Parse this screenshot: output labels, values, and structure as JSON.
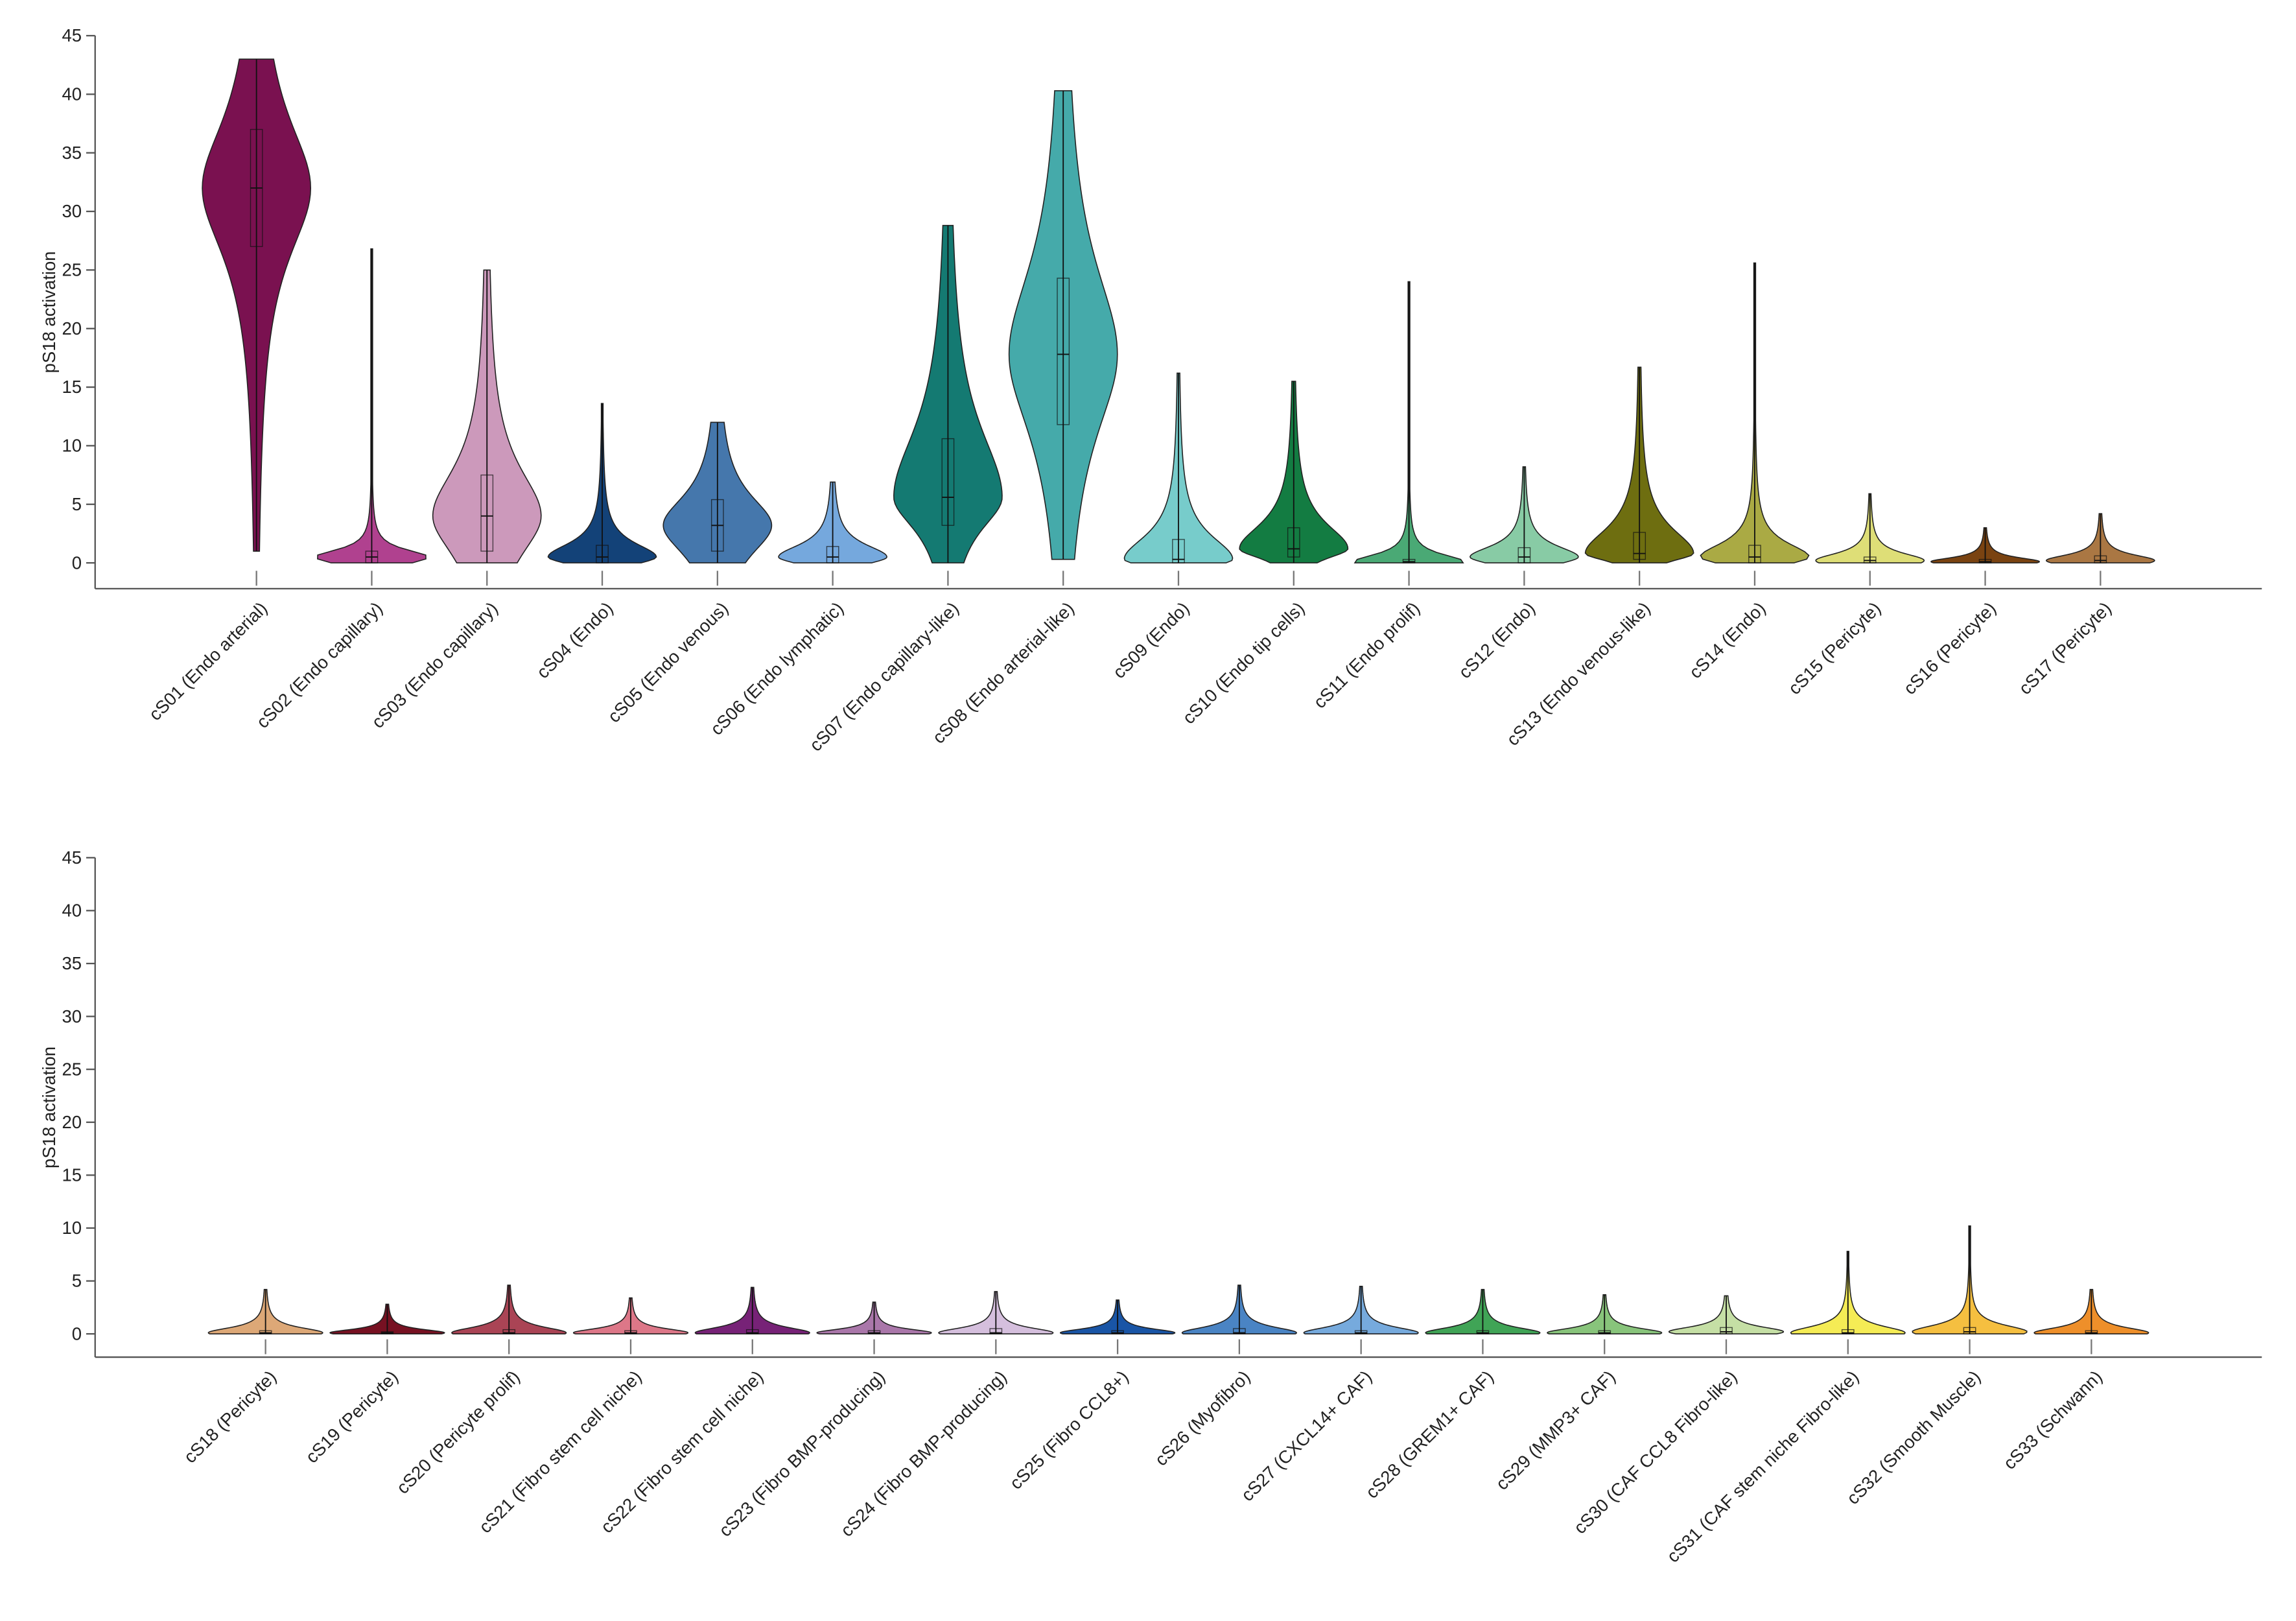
{
  "chart_data": [
    {
      "type": "violin",
      "ylabel": "pS18 activation",
      "categories": [
        "cS01 (Endo arterial)",
        "cS02 (Endo capillary)",
        "cS03 (Endo capillary)",
        "cS04 (Endo)",
        "cS05 (Endo venous)",
        "cS06 (Endo lymphatic)",
        "cS07 (Endo capillary-like)",
        "cS08 (Endo arterial-like)",
        "cS09 (Endo)",
        "cS10 (Endo tip cells)",
        "cS11 (Endo prolif)",
        "cS12 (Endo)",
        "cS13 (Endo venous-like)",
        "cS14 (Endo)",
        "cS15 (Pericyte)",
        "cS16 (Pericyte)",
        "cS17 (Pericyte)"
      ],
      "min": [
        1,
        0,
        0,
        0,
        0,
        0,
        0,
        0.3,
        0,
        0,
        0,
        0,
        0,
        0,
        0,
        0,
        0
      ],
      "q1": [
        27,
        0,
        1,
        0,
        1,
        0,
        3.2,
        11.8,
        0,
        0.5,
        0,
        0,
        0.3,
        0,
        0,
        0,
        0
      ],
      "median": [
        32,
        0.5,
        4,
        0.5,
        3.2,
        0.5,
        5.6,
        17.8,
        0.3,
        1.2,
        0.1,
        0.5,
        0.8,
        0.5,
        0.2,
        0.1,
        0.2
      ],
      "q3": [
        37,
        1,
        7.5,
        1.5,
        5.4,
        1.4,
        10.6,
        24.3,
        2,
        3,
        0.3,
        1.3,
        2.6,
        1.5,
        0.5,
        0.3,
        0.6
      ],
      "max": [
        43,
        26.8,
        25,
        13.6,
        12,
        6.9,
        28.8,
        40.3,
        16.2,
        15.5,
        24,
        8.2,
        16.7,
        25.6,
        5.9,
        3,
        4.2
      ],
      "colors": [
        "#7a1150",
        "#b0418f",
        "#cc99bb",
        "#134278",
        "#4577ac",
        "#75a8dd",
        "#147a72",
        "#45aaaa",
        "#77cccb",
        "#137c42",
        "#4aa975",
        "#88cba5",
        "#6e6e10",
        "#aaaa44",
        "#dede77",
        "#7a4311",
        "#aa7743"
      ],
      "ylim": [
        -2.2,
        45
      ],
      "yticks": [
        0,
        5,
        10,
        15,
        20,
        25,
        30,
        35,
        40,
        45
      ]
    },
    {
      "type": "violin",
      "ylabel": "pS18 activation",
      "categories": [
        "cS18 (Pericyte)",
        "cS19 (Pericyte)",
        "cS20 (Pericyte prolif)",
        "cS21 (Fibro stem cell niche)",
        "cS22 (Fibro stem cell niche)",
        "cS23 (Fibro BMP-producing)",
        "cS24 (Fibro BMP-producing)",
        "cS25 (Fibro CCL8+)",
        "cS26 (Myofibro)",
        "cS27 (CXCL14+ CAF)",
        "cS28 (GREM1+ CAF)",
        "cS29 (MMP3+ CAF)",
        "cS30 (CAF CCL8 Fibro-like)",
        "cS31 (CAF stem niche Fibro-like)",
        "cS32 (Smooth Muscle)",
        "cS33 (Schwann)"
      ],
      "min": [
        0,
        0,
        0,
        0,
        0,
        0,
        0,
        0,
        0,
        0,
        0,
        0,
        0,
        0,
        0,
        0
      ],
      "q1": [
        0,
        0,
        0,
        0,
        0,
        0,
        0,
        0,
        0,
        0,
        0,
        0,
        0,
        0,
        0,
        0
      ],
      "median": [
        0.1,
        0.1,
        0.1,
        0.1,
        0.1,
        0.1,
        0.1,
        0.1,
        0.1,
        0.1,
        0.1,
        0.1,
        0.2,
        0.1,
        0.2,
        0.1
      ],
      "q3": [
        0.3,
        0.2,
        0.4,
        0.3,
        0.4,
        0.3,
        0.5,
        0.3,
        0.5,
        0.3,
        0.3,
        0.3,
        0.6,
        0.4,
        0.6,
        0.3
      ],
      "max": [
        4.2,
        2.8,
        4.6,
        3.4,
        4.4,
        3,
        4,
        3.2,
        4.6,
        4.5,
        4.2,
        3.7,
        3.6,
        7.8,
        10.2,
        4.2
      ],
      "colors": [
        "#dda877",
        "#771122",
        "#aa4455",
        "#dd7788",
        "#772277",
        "#aa77aa",
        "#d5bfdd",
        "#1955a6",
        "#4a84c4",
        "#76aadd",
        "#40a456",
        "#88c47b",
        "#c5dfa5",
        "#f5ec55",
        "#f5bf40",
        "#ee8f2a"
      ],
      "ylim": [
        -2.2,
        45
      ],
      "yticks": [
        0,
        5,
        10,
        15,
        20,
        25,
        30,
        35,
        40,
        45
      ]
    }
  ]
}
